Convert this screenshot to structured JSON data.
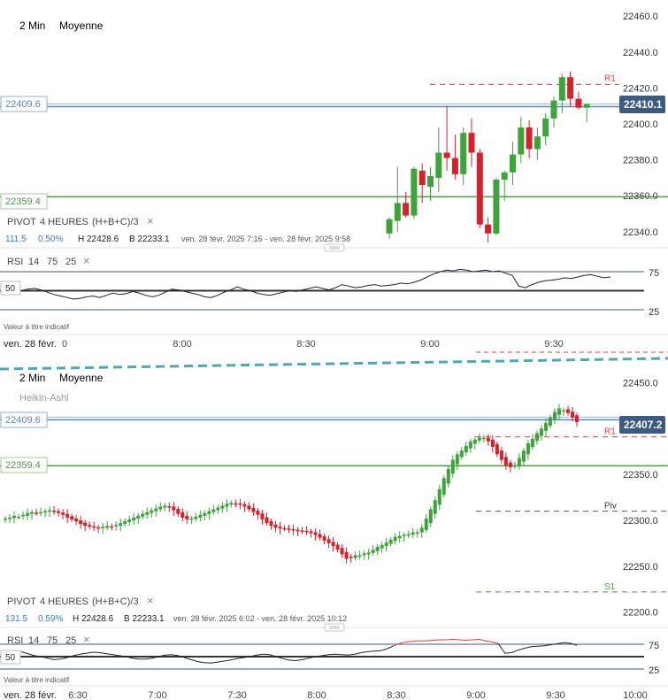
{
  "colors": {
    "up": "#3ea33a",
    "down": "#d9202a",
    "line_pivot_green": "#4c9a3f",
    "line_blue": "#5b86c0",
    "r1_red": "#d94040",
    "dashed_teal": "#4aa9b8",
    "rsi_red": "#d94040",
    "price_tag_bg": "#3d5a80"
  },
  "chart_data": [
    {
      "type": "candlestick",
      "panel": "top",
      "timeframe_label": "2 Min",
      "mode_label": "Moyenne",
      "ylim": [
        22334,
        22466
      ],
      "y_ticks": [
        "22460.0",
        "22440.0",
        "22420.0",
        "22400.0",
        "22380.0",
        "22360.0",
        "22340.0"
      ],
      "left_tags": {
        "blue": "22409.6",
        "green": "22359.4"
      },
      "current_price_tag": "22410.1",
      "levels": {
        "blue": 22409.6,
        "green": 22359.4,
        "r1": 22422
      },
      "level_labels": {
        "r1": "R1"
      },
      "pivot": {
        "label": "PIVOT",
        "period": "4 HEURES",
        "formula": "(H+B+C)/3",
        "close": "×",
        "change": "111.5",
        "change_pct": "0.50%",
        "high": "H 22428.6",
        "low": "B 22233.1",
        "range": "ven. 28 févr. 2025 7:16 - ven. 28 févr. 2025 9:58"
      },
      "candles": [
        {
          "o": 22339,
          "h": 22348,
          "l": 22336,
          "c": 22347
        },
        {
          "o": 22346,
          "h": 22376,
          "l": 22340,
          "c": 22356
        },
        {
          "o": 22356,
          "h": 22362,
          "l": 22348,
          "c": 22349
        },
        {
          "o": 22349,
          "h": 22376,
          "l": 22347,
          "c": 22375
        },
        {
          "o": 22374,
          "h": 22378,
          "l": 22356,
          "c": 22366
        },
        {
          "o": 22365,
          "h": 22376,
          "l": 22357,
          "c": 22371
        },
        {
          "o": 22370,
          "h": 22398,
          "l": 22362,
          "c": 22384
        },
        {
          "o": 22384,
          "h": 22410,
          "l": 22374,
          "c": 22381
        },
        {
          "o": 22381,
          "h": 22394,
          "l": 22369,
          "c": 22372
        },
        {
          "o": 22372,
          "h": 22398,
          "l": 22366,
          "c": 22395
        },
        {
          "o": 22395,
          "h": 22403,
          "l": 22376,
          "c": 22384
        },
        {
          "o": 22384,
          "h": 22386,
          "l": 22342,
          "c": 22344
        },
        {
          "o": 22344,
          "h": 22348,
          "l": 22334,
          "c": 22339
        },
        {
          "o": 22339,
          "h": 22370,
          "l": 22338,
          "c": 22369
        },
        {
          "o": 22369,
          "h": 22374,
          "l": 22357,
          "c": 22373
        },
        {
          "o": 22373,
          "h": 22390,
          "l": 22366,
          "c": 22383
        },
        {
          "o": 22383,
          "h": 22404,
          "l": 22378,
          "c": 22398
        },
        {
          "o": 22398,
          "h": 22402,
          "l": 22381,
          "c": 22386
        },
        {
          "o": 22386,
          "h": 22398,
          "l": 22380,
          "c": 22393
        },
        {
          "o": 22393,
          "h": 22406,
          "l": 22388,
          "c": 22403
        },
        {
          "o": 22403,
          "h": 22415,
          "l": 22398,
          "c": 22413
        },
        {
          "o": 22413,
          "h": 22428,
          "l": 22406,
          "c": 22426
        },
        {
          "o": 22426,
          "h": 22429,
          "l": 22410,
          "c": 22414
        },
        {
          "o": 22414,
          "h": 22418,
          "l": 22408,
          "c": 22409
        },
        {
          "o": 22409,
          "h": 22411,
          "l": 22401,
          "c": 22411
        }
      ],
      "x_ticks": [
        "8:00",
        "8:30",
        "9:00",
        "9:30"
      ],
      "x_start_label": "ven. 28 févr.",
      "x_zero_label": "0"
    },
    {
      "type": "line",
      "panel": "top-rsi",
      "label": "RSI",
      "params": [
        "14",
        "75",
        "25"
      ],
      "close": "×",
      "level_label": "50",
      "y_ticks": [
        "75",
        "25"
      ],
      "ylim": [
        0,
        100
      ],
      "values": [
        50,
        52,
        53,
        51,
        48,
        45,
        43,
        41,
        39,
        40,
        42,
        43,
        41,
        44,
        47,
        45,
        46,
        49,
        47,
        44,
        42,
        44,
        48,
        52,
        51,
        49,
        47,
        45,
        42,
        41,
        44,
        48,
        51,
        55,
        52,
        50,
        47,
        45,
        44,
        46,
        48,
        50,
        49,
        51,
        53,
        55,
        53,
        51,
        54,
        58,
        56,
        54,
        55,
        57,
        58,
        56,
        57,
        58,
        60,
        59,
        61,
        64,
        68,
        72,
        75,
        77,
        76,
        78,
        77,
        75,
        76,
        77,
        75,
        76,
        73,
        70,
        56,
        54,
        58,
        61,
        63,
        64,
        65,
        67,
        66,
        68,
        70,
        71,
        69,
        67,
        68
      ],
      "footnote": "Valeur à titre indicatif"
    },
    {
      "type": "candlestick",
      "panel": "bottom",
      "timeframe_label": "2 Min",
      "mode_label": "Moyenne",
      "subtitle": "Heikin-Ashi",
      "ylim": [
        22192,
        22462
      ],
      "y_ticks": [
        "22450.0",
        "22400.0",
        "22350.0",
        "22300.0",
        "22250.0",
        "22200.0"
      ],
      "left_tags": {
        "blue": "22409.6",
        "green": "22359.4"
      },
      "current_price_tag": "22407.2",
      "levels": {
        "blue": 22409.6,
        "green": 22359.4,
        "r1": 22391,
        "piv": 22310,
        "s1": 22222
      },
      "level_labels": {
        "r1": "R1",
        "piv": "Piv",
        "s1": "S1"
      },
      "pivot": {
        "label": "PIVOT",
        "period": "4 HEURES",
        "formula": "(H+B+C)/3",
        "close": "×",
        "change": "131.5",
        "change_pct": "0.59%",
        "high": "H 22428.6",
        "low": "B 22233.1",
        "range": "ven. 28 févr. 2025 6:02 - ven. 28 févr. 2025 10:12"
      },
      "closes": [
        22302,
        22303,
        22305,
        22304,
        22306,
        22308,
        22309,
        22308,
        22309,
        22310,
        22311,
        22309,
        22308,
        22306,
        22303,
        22301,
        22299,
        22296,
        22294,
        22293,
        22292,
        22291,
        22293,
        22294,
        22293,
        22295,
        22297,
        22299,
        22301,
        22303,
        22305,
        22307,
        22309,
        22311,
        22313,
        22315,
        22316,
        22314,
        22311,
        22307,
        22303,
        22301,
        22302,
        22304,
        22306,
        22308,
        22310,
        22312,
        22314,
        22316,
        22318,
        22319,
        22318,
        22317,
        22315,
        22312,
        22309,
        22306,
        22301,
        22297,
        22294,
        22292,
        22291,
        22291,
        22290,
        22289,
        22289,
        22288,
        22288,
        22286,
        22284,
        22281,
        22278,
        22275,
        22272,
        22268,
        22263,
        22258,
        22260,
        22262,
        22262,
        22264,
        22265,
        22268,
        22271,
        22273,
        22276,
        22279,
        22282,
        22283,
        22284,
        22285,
        22287,
        22287,
        22292,
        22302,
        22312,
        22322,
        22334,
        22346,
        22356,
        22366,
        22372,
        22376,
        22381,
        22386,
        22388,
        22390,
        22390,
        22386,
        22380,
        22372,
        22366,
        22360,
        22358,
        22360,
        22368,
        22376,
        22384,
        22389,
        22395,
        22400,
        22406,
        22412,
        22418,
        22422,
        22420,
        22417,
        22412,
        22407
      ],
      "x_ticks": [
        "6:30",
        "7:00",
        "7:30",
        "8:00",
        "8:30",
        "9:00",
        "9:30",
        "10:00"
      ],
      "x_start_label": "ven. 28 févr."
    },
    {
      "type": "line",
      "panel": "bottom-rsi",
      "label": "RSI",
      "params": [
        "14",
        "75",
        "25"
      ],
      "close": "×",
      "level_label": "50",
      "y_ticks": [
        "75",
        "25"
      ],
      "ylim": [
        0,
        100
      ],
      "values": [
        60,
        56,
        52,
        50,
        47,
        44,
        45,
        48,
        52,
        55,
        57,
        59,
        58,
        56,
        54,
        52,
        50,
        47,
        45,
        45,
        47,
        50,
        53,
        54,
        52,
        48,
        44,
        40,
        38,
        37,
        39,
        41,
        43,
        46,
        48,
        50,
        53,
        55,
        54,
        50,
        46,
        43,
        42,
        44,
        47,
        50,
        52,
        54,
        55,
        54,
        53,
        55,
        58,
        60,
        61,
        62,
        66,
        72,
        77,
        80,
        81,
        82,
        82,
        83,
        84,
        84,
        85,
        84,
        83,
        84,
        85,
        82,
        80,
        76,
        57,
        58,
        63,
        67,
        70,
        71,
        72,
        74,
        76,
        78,
        77,
        73
      ],
      "red_from_index": 57,
      "red_to_index": 73,
      "footnote": "Valeur à titre indicatif"
    }
  ]
}
